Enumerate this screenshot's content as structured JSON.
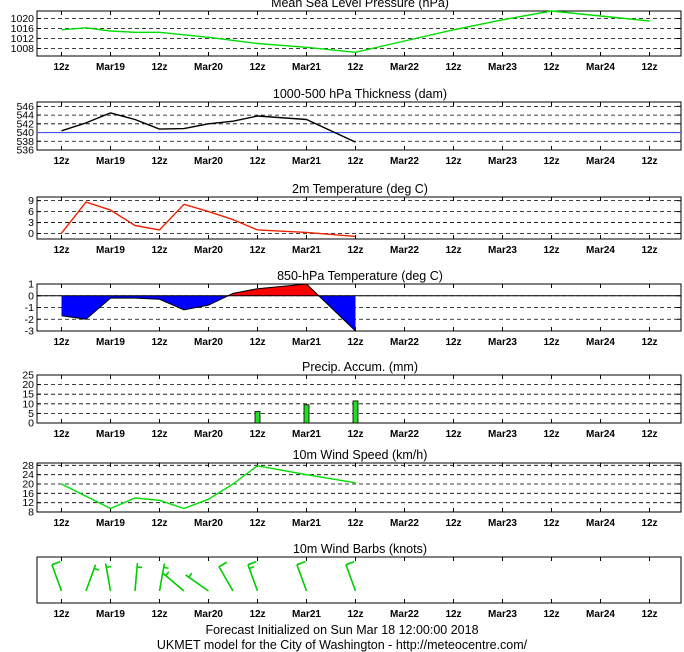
{
  "x_labels": [
    "12z",
    "Mar19",
    "12z",
    "Mar20",
    "12z",
    "Mar21",
    "12z",
    "Mar22",
    "12z",
    "Mar23",
    "12z",
    "Mar24",
    "12z"
  ],
  "footer": {
    "line1": "Forecast Initialized on Sun Mar 18 12:00:00 2018",
    "line2": "UKMET model for the City of Washington - http://meteocentre.com/"
  },
  "chart_data": [
    {
      "type": "line",
      "title": "Mean Sea Level Pressure (hPa)",
      "color": "#00dd00",
      "ylim": [
        1005,
        1023
      ],
      "yticks": [
        1008,
        1012,
        1016,
        1020
      ],
      "x": [
        0,
        0.5,
        1,
        1.5,
        2,
        2.5,
        3,
        4,
        5,
        6,
        7,
        8,
        9,
        10,
        11,
        12
      ],
      "values": [
        1015.5,
        1016.3,
        1015.0,
        1014.5,
        1014.5,
        1013.5,
        1012.5,
        1010.0,
        1008.5,
        1006.5,
        1011.0,
        1015.5,
        1019.5,
        1023.0,
        1021.0,
        1019.0
      ]
    },
    {
      "type": "line",
      "title": "1000-500 hPa Thickness (dam)",
      "color": "#000000",
      "ylim": [
        536,
        547
      ],
      "yticks": [
        536,
        538,
        540,
        542,
        544,
        546
      ],
      "reference_line": {
        "value": 540,
        "color": "#4455ff"
      },
      "x": [
        0,
        0.5,
        1,
        1.5,
        2,
        2.5,
        3,
        3.5,
        4,
        5,
        6
      ],
      "values": [
        540.4,
        542.2,
        544.5,
        543.0,
        540.8,
        540.9,
        542.0,
        542.6,
        543.8,
        543.0,
        537.8
      ]
    },
    {
      "type": "line",
      "title": "2m Temperature (deg C)",
      "color": "#ee2200",
      "ylim": [
        -1.5,
        10
      ],
      "yticks": [
        0,
        3,
        6,
        9
      ],
      "x": [
        0,
        0.5,
        1,
        1.5,
        2,
        2.5,
        3,
        3.5,
        4,
        5,
        6
      ],
      "values": [
        0.1,
        8.6,
        6.4,
        2.2,
        1.0,
        8.0,
        6.0,
        3.8,
        1.0,
        0.3,
        -0.8
      ]
    },
    {
      "type": "area",
      "title": "850-hPa Temperature (deg C)",
      "positive_color": "#ff0000",
      "negative_color": "#0000ff",
      "ylim": [
        -3,
        1
      ],
      "yticks": [
        -3,
        -2,
        -1,
        0,
        1
      ],
      "x": [
        0,
        0.5,
        1,
        1.5,
        2,
        2.5,
        3,
        3.5,
        4,
        5,
        6
      ],
      "values": [
        -1.7,
        -2.0,
        -0.2,
        -0.2,
        -0.3,
        -1.2,
        -0.8,
        0.2,
        0.6,
        1.0,
        -3.0
      ]
    },
    {
      "type": "bar",
      "title": "Precip. Accum. (mm)",
      "color": "#22dd22",
      "ylim": [
        0,
        25
      ],
      "yticks": [
        0,
        5,
        10,
        15,
        20,
        25
      ],
      "x": [
        4,
        5,
        6
      ],
      "values": [
        6.0,
        9.5,
        11.5
      ]
    },
    {
      "type": "line",
      "title": "10m Wind Speed (km/h)",
      "color": "#00dd00",
      "ylim": [
        8,
        29
      ],
      "yticks": [
        8,
        12,
        16,
        20,
        24,
        28
      ],
      "x": [
        0,
        1,
        1.5,
        2,
        2.5,
        3,
        3.5,
        4,
        5,
        6
      ],
      "values": [
        20.0,
        9.5,
        14.0,
        13.0,
        9.5,
        13.5,
        20.0,
        27.8,
        24.0,
        20.5
      ]
    },
    {
      "type": "wind_barbs",
      "title": "10m Wind Barbs  (knots)",
      "color": "#00cc00",
      "x": [
        0,
        0.5,
        1,
        1.5,
        2,
        2.5,
        3,
        3.5,
        4,
        5,
        6
      ],
      "direction_deg": [
        340,
        20,
        350,
        5,
        10,
        310,
        305,
        330,
        340,
        340,
        340
      ],
      "speed_kt": [
        10,
        5,
        5,
        8,
        7,
        5,
        5,
        10,
        15,
        12,
        12
      ]
    }
  ]
}
